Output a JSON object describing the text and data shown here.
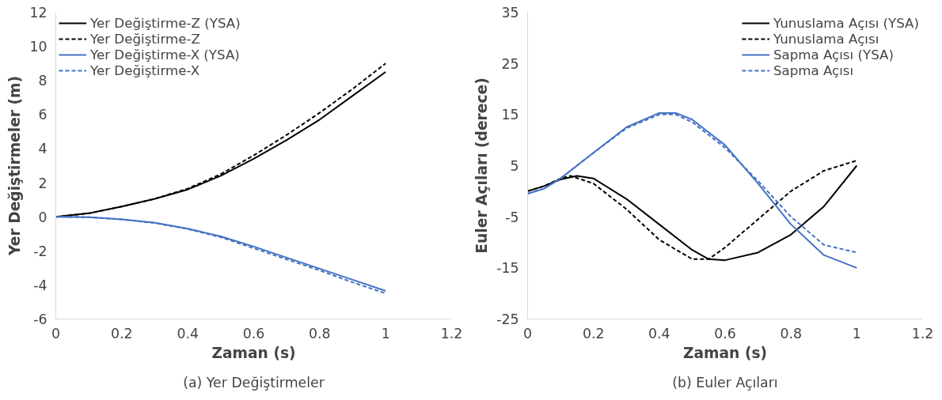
{
  "chart_data": [
    {
      "type": "line",
      "xlabel": "Zaman (s)",
      "ylabel": "Yer Değiştirmeler (m)",
      "xlim": [
        0,
        1.2
      ],
      "ylim": [
        -6,
        12
      ],
      "xticks": [
        0,
        0.2,
        0.4,
        0.6,
        0.8,
        1,
        1.2
      ],
      "yticks": [
        -6,
        -4,
        -2,
        0,
        2,
        4,
        6,
        8,
        10,
        12
      ],
      "legend": "top left",
      "annotations": [
        "(a) Yer Değiştirmeler"
      ],
      "x": [
        0,
        0.1,
        0.2,
        0.3,
        0.4,
        0.5,
        0.6,
        0.7,
        0.8,
        0.9,
        1.0
      ],
      "series": [
        {
          "name": "Yer Değiştirme-Z (YSA)",
          "color": "#000000",
          "line_style": "solid",
          "values": [
            0,
            0.2,
            0.6,
            1.05,
            1.6,
            2.4,
            3.4,
            4.5,
            5.7,
            7.1,
            8.5
          ]
        },
        {
          "name": "Yer Değiştirme-Z",
          "color": "#000000",
          "line_style": "dashed",
          "values": [
            0,
            0.2,
            0.6,
            1.05,
            1.65,
            2.5,
            3.6,
            4.8,
            6.1,
            7.5,
            9.0
          ]
        },
        {
          "name": "Yer Değiştirme-X (YSA)",
          "color": "#4472c4",
          "line_style": "solid",
          "values": [
            0,
            -0.03,
            -0.15,
            -0.35,
            -0.7,
            -1.15,
            -1.75,
            -2.4,
            -3.05,
            -3.7,
            -4.35
          ]
        },
        {
          "name": "Yer Değiştirme-X",
          "color": "#4472c4",
          "line_style": "dashed",
          "values": [
            0,
            -0.03,
            -0.15,
            -0.37,
            -0.72,
            -1.2,
            -1.85,
            -2.5,
            -3.15,
            -3.85,
            -4.5
          ]
        }
      ]
    },
    {
      "type": "line",
      "xlabel": "Zaman (s)",
      "ylabel": "Euler Açıları (derece)",
      "xlim": [
        0,
        1.2
      ],
      "ylim": [
        -25,
        35
      ],
      "xticks": [
        0,
        0.2,
        0.4,
        0.6,
        0.8,
        1,
        1.2
      ],
      "yticks": [
        -25,
        -15,
        -5,
        5,
        15,
        25,
        35
      ],
      "legend": "top right",
      "annotations": [
        "(b) Euler Açıları"
      ],
      "series": [
        {
          "name": "Yunuslama Açısı (YSA)",
          "color": "#000000",
          "line_style": "solid",
          "x": [
            0,
            0.05,
            0.1,
            0.15,
            0.2,
            0.3,
            0.4,
            0.5,
            0.55,
            0.6,
            0.7,
            0.8,
            0.9,
            1.0
          ],
          "values": [
            0,
            1,
            2.3,
            3,
            2.5,
            -1.5,
            -6.5,
            -11.5,
            -13.3,
            -13.5,
            -12,
            -8.5,
            -3,
            5
          ]
        },
        {
          "name": "Yunuslama Açısı",
          "color": "#000000",
          "line_style": "dashed",
          "x": [
            0,
            0.05,
            0.1,
            0.13,
            0.2,
            0.3,
            0.4,
            0.5,
            0.55,
            0.6,
            0.7,
            0.8,
            0.9,
            1.0
          ],
          "values": [
            0,
            1,
            2.5,
            3,
            1.5,
            -3.5,
            -9.5,
            -13.3,
            -13.3,
            -11,
            -5.5,
            0,
            4,
            6
          ]
        },
        {
          "name": "Sapma Açısı (YSA)",
          "color": "#4472c4",
          "line_style": "solid",
          "x": [
            0,
            0.05,
            0.1,
            0.2,
            0.3,
            0.4,
            0.45,
            0.5,
            0.6,
            0.7,
            0.8,
            0.9,
            1.0
          ],
          "values": [
            -0.5,
            0.5,
            2.5,
            7.5,
            12.5,
            15.3,
            15.3,
            14,
            9,
            1.5,
            -6.5,
            -12.5,
            -15
          ]
        },
        {
          "name": "Sapma Açısı",
          "color": "#4472c4",
          "line_style": "dashed",
          "x": [
            0,
            0.05,
            0.1,
            0.2,
            0.3,
            0.4,
            0.45,
            0.5,
            0.6,
            0.7,
            0.8,
            0.9,
            1.0
          ],
          "values": [
            -0.5,
            0.5,
            2.5,
            7.5,
            12.3,
            15,
            15,
            13.5,
            8.5,
            2,
            -5,
            -10.5,
            -12
          ]
        }
      ]
    }
  ]
}
